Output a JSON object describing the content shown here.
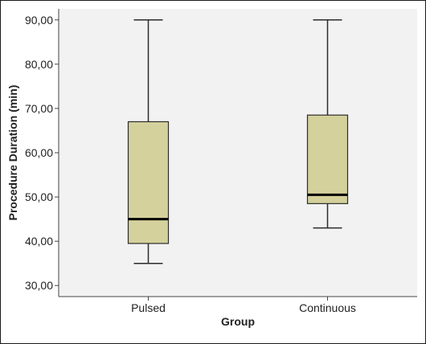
{
  "chart_data": {
    "type": "boxplot",
    "xlabel": "Group",
    "ylabel": "Procedure Duration (min)",
    "categories": [
      "Pulsed",
      "Continuous"
    ],
    "boxes": [
      {
        "category": "Pulsed",
        "min": 35,
        "q1": 39.5,
        "median": 45,
        "q3": 67,
        "max": 90
      },
      {
        "category": "Continuous",
        "min": 43,
        "q1": 48.5,
        "median": 50.5,
        "q3": 68.5,
        "max": 90
      }
    ],
    "yticks": [
      30,
      40,
      50,
      60,
      70,
      80,
      90
    ],
    "ytick_labels": [
      "30,00",
      "40,00",
      "50,00",
      "60,00",
      "70,00",
      "80,00",
      "90,00"
    ],
    "ylim": [
      27.5,
      92.5
    ],
    "grid": false,
    "box_fill": "#d5d19c",
    "line_color": "#2b2b2b",
    "plot_background": "#f2f2f2"
  }
}
